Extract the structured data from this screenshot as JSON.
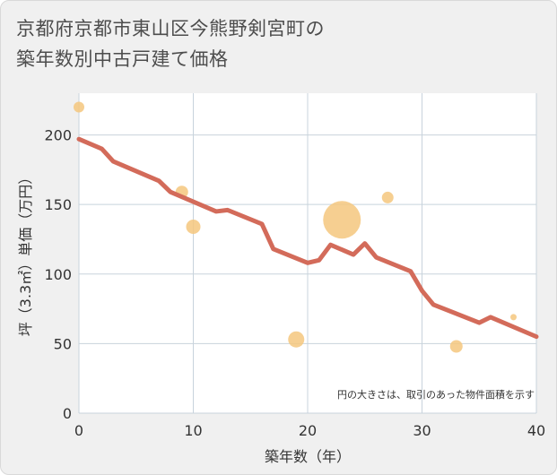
{
  "title_line1": "京都府京都市東山区今熊野剣宮町の",
  "title_line2": "築年数別中古戸建て価格",
  "chart_data": {
    "type": "scatter+line",
    "xlabel": "築年数（年）",
    "ylabel": "坪（3.3㎡）単価（万円）",
    "xlim": [
      0,
      40
    ],
    "ylim": [
      0,
      230
    ],
    "x_ticks": [
      "0",
      "10",
      "20",
      "30",
      "40"
    ],
    "y_ticks": [
      "0",
      "50",
      "100",
      "150",
      "200"
    ],
    "grid": true,
    "note": "円の大きさは、取引のあった物件面積を示す",
    "colors": {
      "line": "#d36b5a",
      "bubble": "#f5c77e",
      "grid": "#c8d3dc",
      "plot_bg": "#ffffff"
    },
    "line": {
      "x": [
        0,
        2,
        3,
        5,
        7,
        8,
        10,
        12,
        13,
        16,
        17,
        20,
        21,
        22,
        24,
        25,
        26,
        29,
        30,
        31,
        35,
        36,
        40
      ],
      "y": [
        197,
        190,
        181,
        174,
        167,
        159,
        152,
        145,
        146,
        136,
        118,
        108,
        110,
        121,
        114,
        122,
        112,
        102,
        88,
        78,
        65,
        69,
        55
      ]
    },
    "bubbles": [
      {
        "x": 0,
        "y": 220,
        "size": 6
      },
      {
        "x": 9,
        "y": 159,
        "size": 7
      },
      {
        "x": 10,
        "y": 134,
        "size": 8
      },
      {
        "x": 19,
        "y": 53,
        "size": 9
      },
      {
        "x": 23,
        "y": 139,
        "size": 21
      },
      {
        "x": 27,
        "y": 155,
        "size": 6.5
      },
      {
        "x": 33,
        "y": 48,
        "size": 7
      },
      {
        "x": 38,
        "y": 69,
        "size": 3.5
      }
    ]
  }
}
